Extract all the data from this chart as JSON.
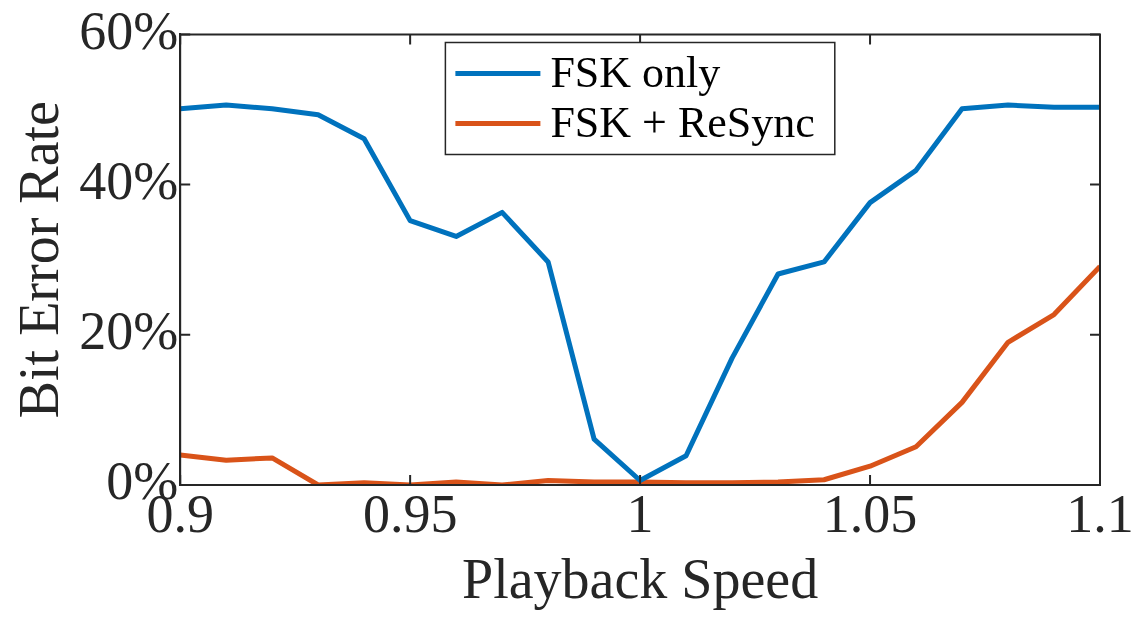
{
  "chart_data": {
    "type": "line",
    "xlabel": "Playback Speed",
    "ylabel": "Bit Error Rate",
    "x": [
      0.9,
      0.91,
      0.92,
      0.93,
      0.94,
      0.95,
      0.96,
      0.97,
      0.98,
      0.99,
      1.0,
      1.01,
      1.02,
      1.03,
      1.04,
      1.05,
      1.06,
      1.07,
      1.08,
      1.09,
      1.1
    ],
    "series": [
      {
        "name": "FSK only",
        "color": "#0072bd",
        "values": [
          50.1,
          50.6,
          50.1,
          49.3,
          46.1,
          35.2,
          33.1,
          36.3,
          29.7,
          6.1,
          0.6,
          3.9,
          16.9,
          28.1,
          29.7,
          37.6,
          41.9,
          50.1,
          50.6,
          50.3,
          50.3
        ]
      },
      {
        "name": "FSK + ReSync",
        "color": "#d95319",
        "values": [
          4.0,
          3.3,
          3.6,
          0,
          0.3,
          0,
          0.4,
          0,
          0.6,
          0.4,
          0.4,
          0.3,
          0.3,
          0.4,
          0.7,
          2.5,
          5.1,
          11.0,
          19.0,
          22.7,
          29.1
        ]
      }
    ],
    "xlim": [
      0.9,
      1.1
    ],
    "xticks": [
      {
        "value": 0.9,
        "label": "0.9"
      },
      0.95,
      1,
      1.05,
      {
        "value": 1.1,
        "label": "1.1"
      }
    ],
    "ylim": [
      0,
      60
    ],
    "yticks": [
      {
        "value": 0,
        "label": "0%"
      },
      {
        "value": 20,
        "label": "20%"
      },
      {
        "value": 40,
        "label": "40%"
      },
      {
        "value": 60,
        "label": "60%"
      }
    ],
    "legend": "top",
    "grid": false,
    "marker": "none",
    "line_style": "solid"
  }
}
